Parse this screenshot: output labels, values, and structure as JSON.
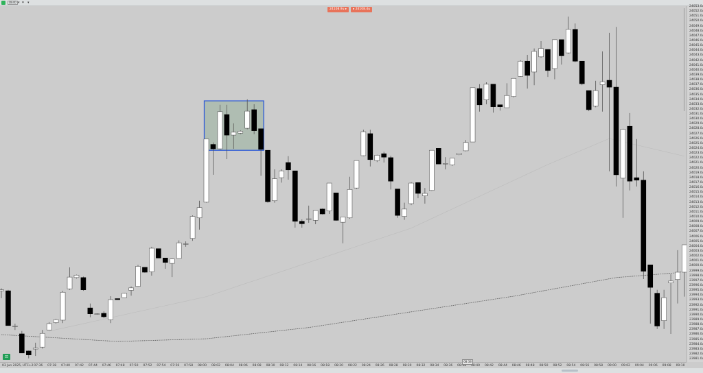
{
  "toolbar": {
    "symbol": "DE40",
    "symbol_dropdown": "▾",
    "timeframe_icon": "⌗",
    "timeframe_dropdown": "▾"
  },
  "trade_badges": {
    "sell_label": "24108.9u ▸",
    "buy_label": "▸ 24108.4u",
    "color": "#e8735a"
  },
  "green_button": {
    "icon": "chat-icon",
    "label": "⊡"
  },
  "time_axis": {
    "date_label": "03 Jun 2025, UTC+2",
    "labels": [
      "07:36",
      "07:38",
      "07:40",
      "07:42",
      "07:44",
      "07:46",
      "07:48",
      "07:50",
      "07:52",
      "07:54",
      "07:56",
      "07:58",
      "08:00",
      "08:02",
      "08:04",
      "08:06",
      "08:08",
      "08:10",
      "08:12",
      "08:14",
      "08:16",
      "08:18",
      "08:20",
      "08:22",
      "08:24",
      "08:26",
      "08:28",
      "08:30",
      "08:32",
      "08:34",
      "08:36",
      "08:38",
      "08:40",
      "08:42",
      "08:44",
      "08:46",
      "08:48",
      "08:50",
      "08:52",
      "08:54",
      "08:56",
      "08:58",
      "09:00",
      "09:02",
      "09:04",
      "09:06",
      "09:08",
      "09:10"
    ],
    "marker_label": "08:38"
  },
  "price_axis": {
    "max": 24053,
    "min": 23981,
    "step": 1,
    "suffix": "u"
  },
  "chart_data": {
    "type": "candlestick",
    "symbol": "DE40",
    "interval": "1m",
    "start_time": "07:31",
    "colors": {
      "up": "#ffffff",
      "down": "#000000",
      "background": "#cccccc",
      "selection": "#2f5bd6"
    },
    "ohlc": [
      [
        23995,
        23995.5,
        23993.5,
        23995.2
      ],
      [
        23995,
        23995.2,
        23987.9,
        23987.9
      ],
      [
        23987.8,
        23988.3,
        23987,
        23987.8
      ],
      [
        23986.2,
        23986.8,
        23982.3,
        23982.3
      ],
      [
        23982.7,
        23982.8,
        23981.2,
        23981.9
      ],
      [
        23983.1,
        23984.4,
        23981.7,
        23983.3
      ],
      [
        23983.5,
        23987,
        23983.2,
        23986.3
      ],
      [
        23987,
        23988.6,
        23987,
        23988.3
      ],
      [
        23988.5,
        23989.3,
        23988.3,
        23989.1
      ],
      [
        23989,
        23995,
        23988.4,
        23994.7
      ],
      [
        23995.4,
        23999.8,
        23995.2,
        23997.8
      ],
      [
        23997.7,
        23998.3,
        23997.5,
        23998.2
      ],
      [
        23997.7,
        23997.9,
        23995,
        23995.2
      ],
      [
        23991.5,
        23992.4,
        23989.6,
        23990.3
      ],
      [
        23990.2,
        23990.4,
        23990.1,
        23990.3
      ],
      [
        23990.4,
        23990.8,
        23989.4,
        23989.7
      ],
      [
        23989.1,
        23993.9,
        23988.4,
        23993.2
      ],
      [
        23993.4,
        23993.4,
        23993.2,
        23993.2
      ],
      [
        23993.6,
        23994.6,
        23993.6,
        23994.5
      ],
      [
        23995.1,
        23995.9,
        23994,
        23995.6
      ],
      [
        23995.9,
        24000.3,
        23995.8,
        24000
      ],
      [
        23999.8,
        23999.8,
        23998.7,
        23998.8
      ],
      [
        23998.9,
        24004,
        23998.1,
        24003.7
      ],
      [
        24003.6,
        24003.6,
        24001.7,
        24001.7
      ],
      [
        24001.7,
        24001.7,
        23999.5,
        24000.8
      ],
      [
        24000.6,
        24001.6,
        23997.8,
        24001.5
      ],
      [
        24001.6,
        24005.3,
        24001.6,
        24004.8
      ],
      [
        24004.5,
        24005.1,
        24004,
        24004.6
      ],
      [
        24005.7,
        24010.4,
        24005.2,
        24010.2
      ],
      [
        24009.9,
        24013.4,
        24007.5,
        24012
      ],
      [
        24013.1,
        24026,
        24013,
        24026
      ],
      [
        24024.9,
        24025.3,
        24018.7,
        24024
      ],
      [
        24024,
        24033,
        24023.8,
        24031.6
      ],
      [
        24031,
        24033,
        24021.9,
        24026.8
      ],
      [
        24026.8,
        24029.2,
        24024,
        24027.4
      ],
      [
        24027.2,
        24027.8,
        24027,
        24027.6
      ],
      [
        24028.2,
        24034.1,
        24028,
        24031.7
      ],
      [
        24032,
        24033.1,
        24027,
        24027.7
      ],
      [
        24028.1,
        24028.1,
        24018.5,
        24023.9
      ],
      [
        24023.7,
        24023.7,
        24013,
        24013.2
      ],
      [
        24013.4,
        24019.8,
        24013,
        24017.9
      ],
      [
        24018.1,
        24019.8,
        24017.1,
        24019.5
      ],
      [
        24021.2,
        24022.5,
        24017.7,
        24019.7
      ],
      [
        24019.5,
        24019.5,
        24007.9,
        24009.2
      ],
      [
        24009.2,
        24009.6,
        24007.9,
        24008.7
      ],
      [
        24009.7,
        24012.4,
        24008.9,
        24009.7
      ],
      [
        24009.4,
        24011.4,
        24008.6,
        24011.4
      ],
      [
        24011.7,
        24011.8,
        24010.6,
        24010.7
      ],
      [
        24011.3,
        24017,
        24010.7,
        24017
      ],
      [
        24015,
        24015,
        24009.3,
        24009.4
      ],
      [
        24009,
        24010.1,
        24004.7,
        24010.1
      ],
      [
        24009.9,
        24018.3,
        24009.7,
        24015.7
      ],
      [
        24016,
        24021.6,
        24015.8,
        24021.6
      ],
      [
        24022.6,
        24027.9,
        24022.5,
        24027.5
      ],
      [
        24027.1,
        24027.9,
        24020.4,
        24021.8
      ],
      [
        24021.6,
        24022.8,
        24021.3,
        24022.7
      ],
      [
        24023,
        24023.4,
        24021.2,
        24022.3
      ],
      [
        24022.2,
        24022.6,
        24015.7,
        24017.4
      ],
      [
        24015.8,
        24015.8,
        24009.9,
        24010.4
      ],
      [
        24010.2,
        24013,
        24009.5,
        24011.7
      ],
      [
        24012.8,
        24017.2,
        24012.5,
        24017
      ],
      [
        24017.1,
        24017.1,
        24013.9,
        24014.9
      ],
      [
        24014.4,
        24016,
        24012.8,
        24014.9
      ],
      [
        24015.5,
        24023.7,
        24015.4,
        24023.7
      ],
      [
        24024.1,
        24024.1,
        24020.9,
        24020.9
      ],
      [
        24020.9,
        24022.3,
        24019.8,
        24021
      ],
      [
        24020.7,
        24022.1,
        24020.5,
        24022.1
      ],
      [
        24022.8,
        24023.1,
        24022.7,
        24023.1
      ],
      [
        24023.6,
        24025.8,
        24023.5,
        24025.3
      ],
      [
        24025.4,
        24036.5,
        24025.4,
        24036.5
      ],
      [
        24036.3,
        24037.2,
        24031.6,
        24033
      ],
      [
        24034,
        24037.6,
        24033.1,
        24037.2
      ],
      [
        24037.2,
        24037.2,
        24031.4,
        24032.6
      ],
      [
        24033,
        24033,
        24031.8,
        24032.6
      ],
      [
        24032.4,
        24037.4,
        24032.4,
        24034.9
      ],
      [
        24034.7,
        24038.4,
        24034.5,
        24038.4
      ],
      [
        24038.8,
        24042.1,
        24038.7,
        24041.9
      ],
      [
        24041.9,
        24043.2,
        24036.3,
        24039
      ],
      [
        24039.7,
        24044.5,
        24037,
        24043.9
      ],
      [
        24042.8,
        24046,
        24042.6,
        24044.5
      ],
      [
        24044.3,
        24044.3,
        24038.7,
        24040
      ],
      [
        24040.4,
        24046.3,
        24038.2,
        24046.3
      ],
      [
        24046.3,
        24046.3,
        24041.2,
        24043
      ],
      [
        24043.6,
        24051,
        24043.4,
        24048.4
      ],
      [
        24048.4,
        24049.6,
        24041.7,
        24041.9
      ],
      [
        24041.9,
        24041.9,
        24037,
        24037.3
      ],
      [
        24035.9,
        24035.9,
        24031.7,
        24032
      ],
      [
        24032.7,
        24037.9,
        24032.5,
        24035.9
      ],
      [
        24037.1,
        24043.9,
        24031.6,
        24037.7
      ],
      [
        24038,
        24047.7,
        24019.4,
        24036.6
      ],
      [
        24036.6,
        24048.9,
        24016.3,
        24018.7
      ],
      [
        24018,
        24028.1,
        24009.9,
        24028
      ],
      [
        24028.6,
        24031.3,
        24015.5,
        24017.4
      ],
      [
        24018.1,
        24026,
        24016.3,
        24017.6
      ],
      [
        24017.6,
        24019.4,
        23997.4,
        23999
      ],
      [
        24000.3,
        24000.3,
        23988.3,
        23995.7
      ],
      [
        23994.5,
        23995.2,
        23987.2,
        23987.8
      ],
      [
        23988.9,
        23995.2,
        23987.2,
        23993.6
      ],
      [
        23996.6,
        23998.4,
        23986.2,
        23997
      ],
      [
        23997.3,
        24003.3,
        23992.4,
        23998.8
      ],
      [
        23998.8,
        24004.4,
        23993.8,
        24004.4
      ]
    ],
    "moving_averages": [
      {
        "style": "dotted",
        "color": "#555555",
        "points": [
          [
            "07:31",
            23986.05
          ],
          [
            "07:48",
            23984.65
          ],
          [
            "08:01",
            23985.2
          ],
          [
            "08:16",
            23987.5
          ],
          [
            "08:31",
            23990.7
          ],
          [
            "08:46",
            23993.9
          ],
          [
            "09:01",
            23997.7
          ],
          [
            "09:10",
            23998.7
          ],
          [
            "09:11",
            23999
          ]
        ]
      },
      {
        "style": "solid",
        "color": "#bdbdbd",
        "points": [
          [
            "07:38",
            23986.75
          ],
          [
            "08:01",
            23993.8
          ],
          [
            "08:31",
            24007.8
          ],
          [
            "08:51",
            24020.8
          ],
          [
            "09:00",
            24026.1
          ],
          [
            "09:11",
            24022.5
          ]
        ]
      }
    ],
    "selection_rectangle": {
      "from_time": "08:01",
      "to_time": "08:09",
      "price_high": 24033.8,
      "price_low": 24023.7
    }
  }
}
